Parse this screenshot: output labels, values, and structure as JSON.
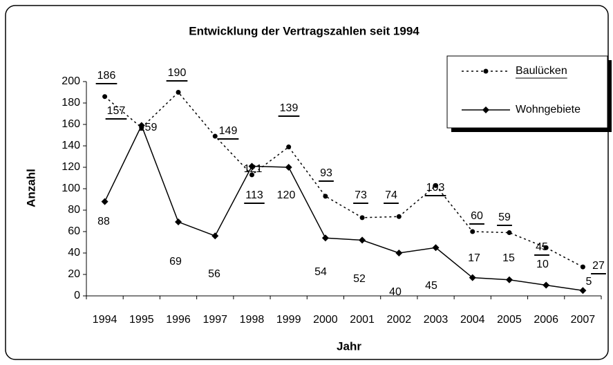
{
  "chart_data": {
    "type": "line",
    "title": "Entwicklung der Vertragszahlen seit 1994",
    "x_label": "Jahr",
    "y_label": "Anzahl",
    "categories": [
      "1994",
      "1995",
      "1996",
      "1997",
      "1998",
      "1999",
      "2000",
      "2001",
      "2002",
      "2003",
      "2004",
      "2005",
      "2006",
      "2007"
    ],
    "series": [
      {
        "name": "Baulücken",
        "color": "#000000",
        "style": "dotted",
        "marker": "circle",
        "values": [
          186,
          157,
          190,
          149,
          113,
          139,
          93,
          73,
          74,
          103,
          60,
          59,
          45,
          27
        ]
      },
      {
        "name": "Wohngebiete",
        "color": "#000000",
        "style": "solid",
        "marker": "diamond",
        "values": [
          88,
          159,
          69,
          56,
          121,
          120,
          54,
          52,
          40,
          45,
          17,
          15,
          10,
          5
        ]
      }
    ],
    "ylim": [
      0,
      200
    ],
    "yticks": [
      0,
      20,
      40,
      60,
      80,
      100,
      120,
      140,
      160,
      180,
      200
    ],
    "grid": false,
    "legend": "upper right"
  }
}
